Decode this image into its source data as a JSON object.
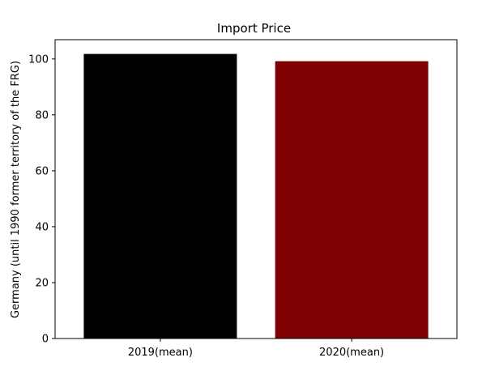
{
  "chart_data": {
    "type": "bar",
    "title": "Import Price",
    "xlabel": "",
    "ylabel": "Germany (until 1990 former territory of the FRG)",
    "categories": [
      "2019(mean)",
      "2020(mean)"
    ],
    "values": [
      101.8,
      99.2
    ],
    "colors": [
      "#000000",
      "#7f0000"
    ],
    "ylim": [
      0,
      106.9
    ],
    "yticks": [
      0,
      20,
      40,
      60,
      80,
      100
    ],
    "grid": false,
    "legend": "none"
  }
}
